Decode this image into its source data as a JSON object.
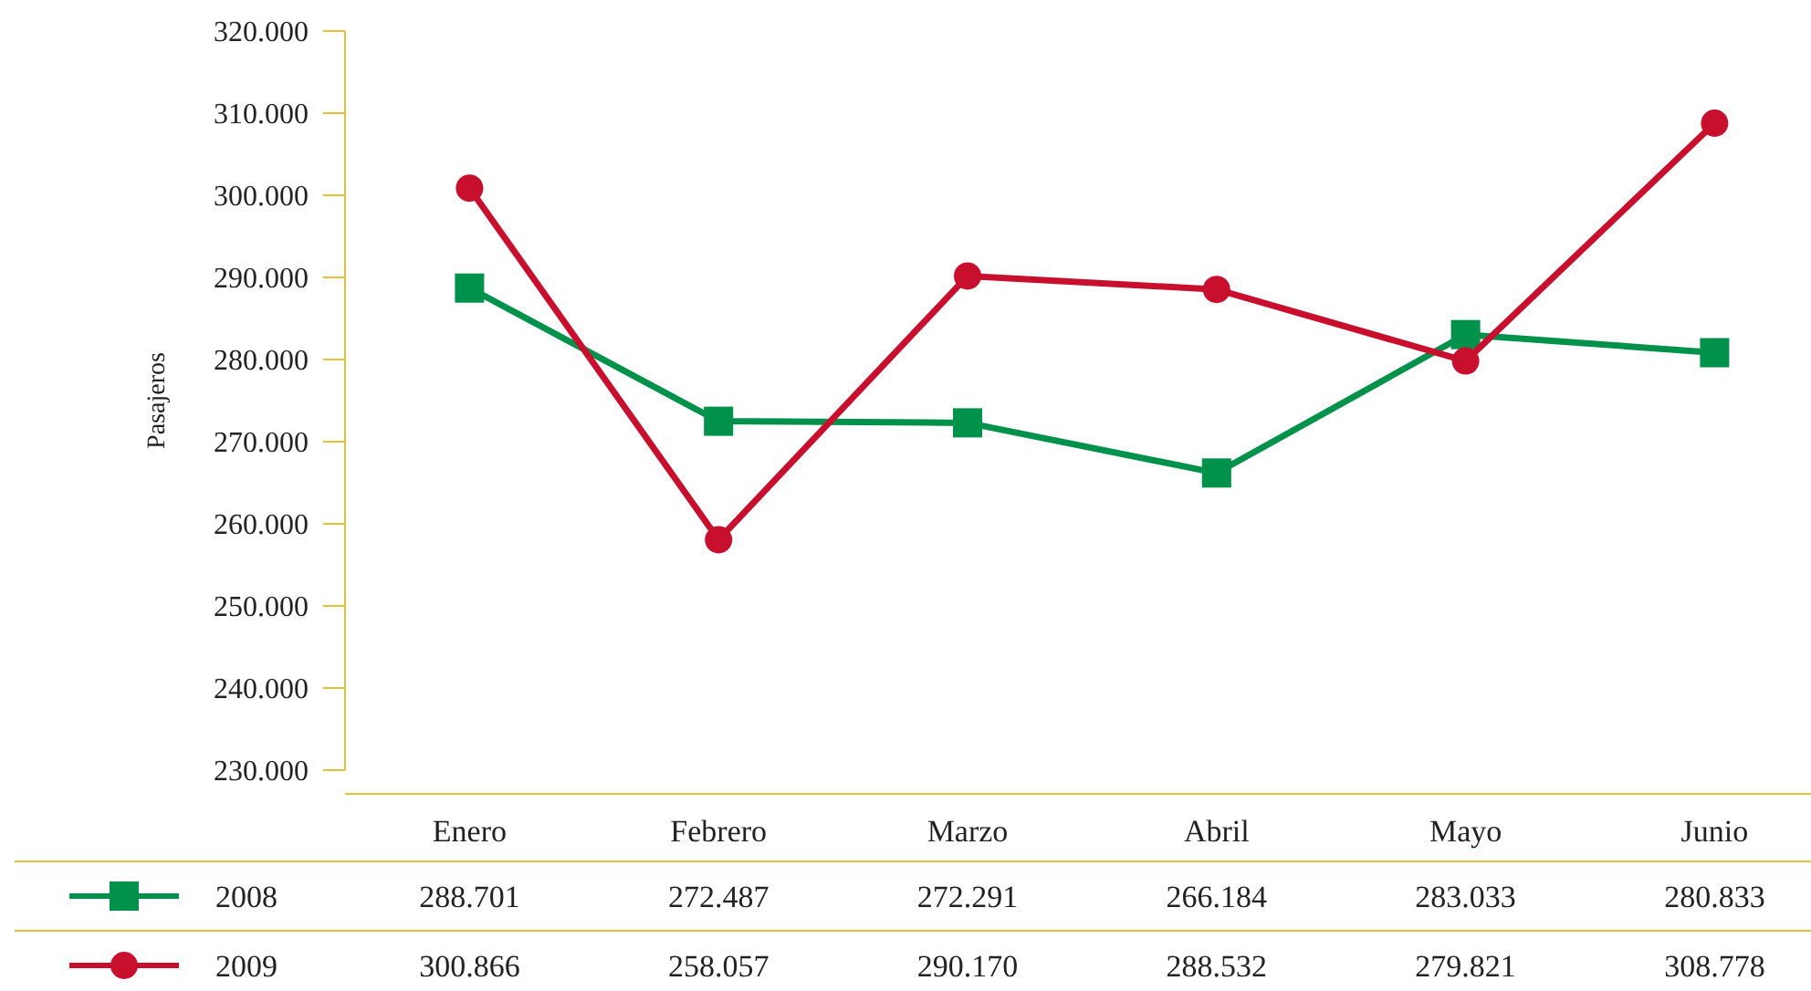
{
  "chart_data": {
    "type": "line",
    "ylabel": "Pasajeros",
    "categories": [
      "Enero",
      "Febrero",
      "Marzo",
      "Abril",
      "Mayo",
      "Junio"
    ],
    "series": [
      {
        "name": "2008",
        "color": "#00914a",
        "marker": "square",
        "values": [
          288701,
          272487,
          272291,
          266184,
          283033,
          280833
        ],
        "value_labels": [
          "288.701",
          "272.487",
          "272.291",
          "266.184",
          "283.033",
          "280.833"
        ]
      },
      {
        "name": "2009",
        "color": "#c8102e",
        "marker": "circle",
        "values": [
          300866,
          258057,
          290170,
          288532,
          279821,
          308778
        ],
        "value_labels": [
          "300.866",
          "258.057",
          "290.170",
          "288.532",
          "279.821",
          "308.778"
        ]
      }
    ],
    "ylim": [
      230000,
      320000
    ],
    "yticks": [
      {
        "value": 230000,
        "label": "230.000"
      },
      {
        "value": 240000,
        "label": "240.000"
      },
      {
        "value": 250000,
        "label": "250.000"
      },
      {
        "value": 260000,
        "label": "260.000"
      },
      {
        "value": 270000,
        "label": "270.000"
      },
      {
        "value": 280000,
        "label": "280.000"
      },
      {
        "value": 290000,
        "label": "290.000"
      },
      {
        "value": 300000,
        "label": "300.000"
      },
      {
        "value": 310000,
        "label": "310.000"
      },
      {
        "value": 320000,
        "label": "320.000"
      }
    ],
    "legend": "bottom",
    "line_style": "solid"
  }
}
